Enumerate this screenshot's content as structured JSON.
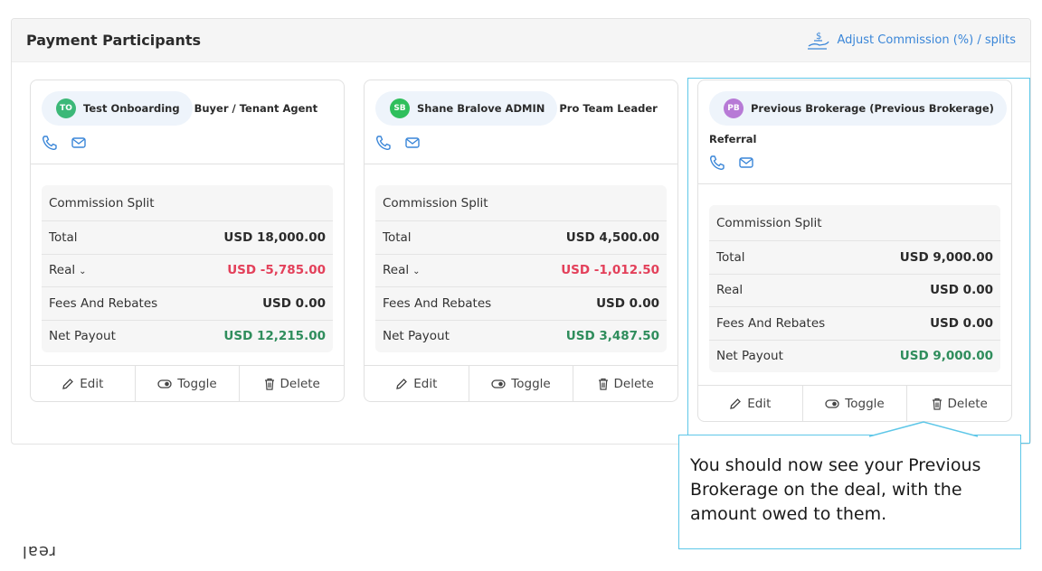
{
  "panel": {
    "title": "Payment Participants",
    "adjust_link": "Adjust Commission (%) / splits"
  },
  "participants": [
    {
      "initials": "TO",
      "avatar_color": "#3cb878",
      "name": "Test Onboarding",
      "role": "Buyer / Tenant Agent",
      "split_header": "Commission Split",
      "rows": [
        {
          "label": "Total",
          "value": "USD 18,000.00"
        },
        {
          "label": "Real",
          "value": "USD -5,785.00"
        },
        {
          "label": "Fees And Rebates",
          "value": "USD 0.00"
        },
        {
          "label": "Net Payout",
          "value": "USD 12,215.00"
        }
      ]
    },
    {
      "initials": "SB",
      "avatar_color": "#2fbf5c",
      "name": "Shane Bralove ADMIN",
      "role": "Pro Team Leader",
      "split_header": "Commission Split",
      "rows": [
        {
          "label": "Total",
          "value": "USD 4,500.00"
        },
        {
          "label": "Real",
          "value": "USD -1,012.50"
        },
        {
          "label": "Fees And Rebates",
          "value": "USD 0.00"
        },
        {
          "label": "Net Payout",
          "value": "USD 3,487.50"
        }
      ]
    },
    {
      "initials": "PB",
      "avatar_color": "#b77ad6",
      "name": "Previous Brokerage (Previous Brokerage)",
      "role": "Referral",
      "split_header": "Commission Split",
      "rows": [
        {
          "label": "Total",
          "value": "USD 9,000.00"
        },
        {
          "label": "Real",
          "value": "USD 0.00"
        },
        {
          "label": "Fees And Rebates",
          "value": "USD 0.00"
        },
        {
          "label": "Net Payout",
          "value": "USD 9,000.00"
        }
      ]
    }
  ],
  "actions": {
    "edit": "Edit",
    "toggle": "Toggle",
    "delete": "Delete"
  },
  "icons": {
    "phone": "phone-icon",
    "mail": "mail-icon",
    "edit": "pencil-icon",
    "toggle": "toggle-icon",
    "delete": "trash-icon",
    "adjust": "hand-dollar-icon"
  },
  "colors": {
    "link": "#3a86d8",
    "negative": "#e3405a",
    "positive": "#2f8d5c",
    "highlight": "#5ec7e8"
  },
  "tooltip": {
    "text": "You should now see your Previous Brokerage on the deal, with the amount owed to them."
  },
  "brand": {
    "logo": "real"
  }
}
